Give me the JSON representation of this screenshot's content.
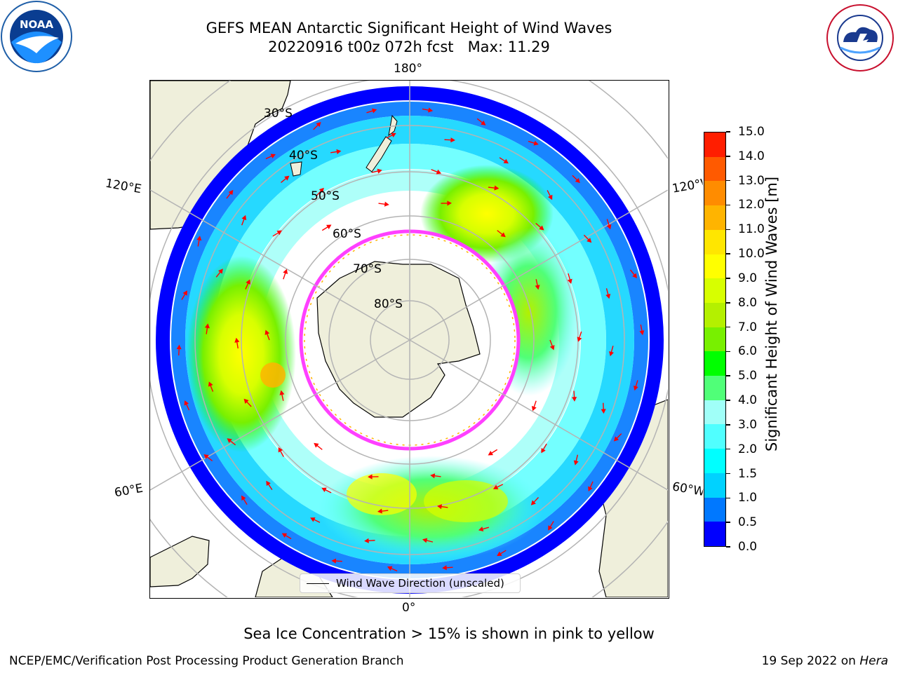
{
  "title": {
    "line1": "GEFS MEAN Antarctic Significant Height of Wind Waves",
    "line2": "20220916 t00z 072h fcst   Max: 11.29"
  },
  "logos": {
    "left": "NOAA",
    "left_ring": "NATIONAL OCEANIC AND ATMOSPHERIC ADMINISTRATION · U.S. DEPARTMENT OF COMMERCE",
    "right_ring": "NATIONAL WEATHER SERVICE"
  },
  "map": {
    "longitude_labels": {
      "top": "180°",
      "bottom": "0°",
      "upper_left": "120°E",
      "upper_right": "120°W",
      "lower_left": "60°E",
      "lower_right": "60°W"
    },
    "latitude_labels": [
      "30°S",
      "40°S",
      "50°S",
      "60°S",
      "70°S",
      "80°S"
    ]
  },
  "colorbar": {
    "title": "Significant Height of Wind Waves [m]",
    "ticks": [
      "0.0",
      "0.5",
      "1.0",
      "1.5",
      "2.0",
      "3.0",
      "4.0",
      "5.0",
      "6.0",
      "7.0",
      "8.0",
      "9.0",
      "10.0",
      "11.0",
      "12.0",
      "13.0",
      "14.0",
      "15.0"
    ],
    "colors": [
      "#0000ff",
      "#0078ff",
      "#00d2ff",
      "#00ffff",
      "#50ffff",
      "#a0fff8",
      "#50ff78",
      "#00ff00",
      "#78f000",
      "#b4f000",
      "#d7ff00",
      "#ffff00",
      "#ffe600",
      "#ffb400",
      "#ff8c00",
      "#ff5a00",
      "#ff1e00"
    ]
  },
  "legend": {
    "label": "Wind Wave Direction (unscaled)"
  },
  "note": "Sea Ice Concentration > 15% is shown in pink to yellow",
  "footer": {
    "left": "NCEP/EMC/Verification Post Processing Product Generation Branch",
    "right_date": "19 Sep 2022 on ",
    "right_machine": "Hera"
  },
  "colors": {
    "land": "#efefdb",
    "ice_edge": "#ff40ff",
    "arrow": "#ff0000",
    "grid": "#b4b4b4"
  }
}
